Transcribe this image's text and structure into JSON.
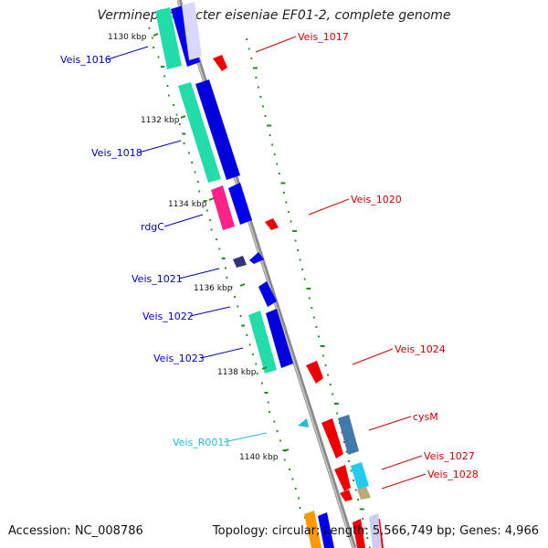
{
  "title": "Verminephrobacter eiseniae EF01-2, complete genome",
  "footer": {
    "accession": "Accession: NC_008786",
    "topology": "Topology: circular; Length: 5,566,749 bp; Genes: 4,966"
  },
  "colors": {
    "forward_cds": "#0000ee",
    "reverse_cds": "#ee0000",
    "gene_forward": "#22ddaa",
    "gene_reverse": "#ff2288",
    "rna_label": "#22bbdd",
    "backbone": "#888888",
    "gc_dots": "#228822"
  },
  "ticks": [
    {
      "label": "1130 kbp"
    },
    {
      "label": "1132 kbp"
    },
    {
      "label": "1134 kbp"
    },
    {
      "label": "1136 kbp"
    },
    {
      "label": "1138 kbp"
    },
    {
      "label": "1140 kbp"
    }
  ],
  "forward_labels": [
    {
      "name": "Veis_1016"
    },
    {
      "name": "Veis_1018"
    },
    {
      "name": "rdgC"
    },
    {
      "name": "Veis_1021"
    },
    {
      "name": "Veis_1022"
    },
    {
      "name": "Veis_1023"
    },
    {
      "name": "Veis_R0011"
    }
  ],
  "reverse_labels": [
    {
      "name": "Veis_1017"
    },
    {
      "name": "Veis_1020"
    },
    {
      "name": "Veis_1024"
    },
    {
      "name": "cysM"
    },
    {
      "name": "Veis_1027"
    },
    {
      "name": "Veis_1028"
    }
  ]
}
